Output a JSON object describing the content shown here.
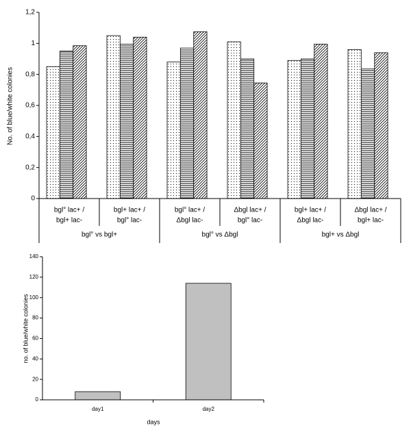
{
  "chart_data": [
    {
      "type": "grouped-bar",
      "ylabel": "No. of blue/white colonies",
      "categories": [
        [
          "bgl° lac+ /",
          "bgl+ lac-"
        ],
        [
          "bgl+ lac+ /",
          "bgl° lac-"
        ],
        [
          "bgl° lac+ /",
          "Δbgl lac-"
        ],
        [
          "Δbgl lac+ /",
          "bgl° lac-"
        ],
        [
          "bgl+ lac+ /",
          "Δbgl lac-"
        ],
        [
          "Δbgl lac+ /",
          "bgl+ lac-"
        ]
      ],
      "groups": [
        "bgl° vs bgl+",
        "bgl° vs Δbgl",
        "bgl+ vs Δbgl"
      ],
      "series": [
        {
          "pattern": "dots",
          "values": [
            0.85,
            1.05,
            0.88,
            1.01,
            0.89,
            0.96
          ]
        },
        {
          "pattern": "hlines",
          "values": [
            0.95,
            0.995,
            0.97,
            0.9,
            0.9,
            0.835
          ]
        },
        {
          "pattern": "diag",
          "values": [
            0.985,
            1.04,
            1.075,
            0.745,
            0.995,
            0.94
          ]
        }
      ],
      "ylim": [
        0,
        1.2
      ],
      "yticks": [
        0,
        {
          "value": 0.2,
          "label": "0,2"
        },
        {
          "value": 0.4,
          "label": "0,4"
        },
        {
          "value": 0.6,
          "label": "0,6"
        },
        {
          "value": 0.8,
          "label": "0,8"
        },
        1,
        {
          "value": 1.2,
          "label": "1,2"
        }
      ]
    },
    {
      "type": "bar",
      "ylabel": "no. of blue/white colonies",
      "xlabel": "days",
      "categories": [
        "day1",
        "day2"
      ],
      "values": [
        8,
        114
      ],
      "color": "#c0c0c0",
      "ylim": [
        0,
        140
      ],
      "yticks": [
        0,
        20,
        40,
        60,
        80,
        100,
        120,
        140
      ]
    }
  ]
}
